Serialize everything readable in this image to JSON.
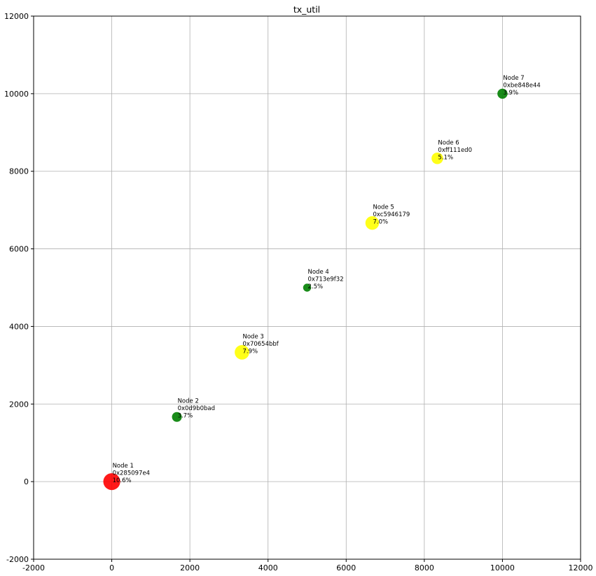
{
  "chart_data": {
    "type": "scatter",
    "title": "tx_util",
    "xlabel": "",
    "ylabel": "",
    "xlim": [
      -2000,
      12000
    ],
    "ylim": [
      -2000,
      12000
    ],
    "xticks": [
      -2000,
      0,
      2000,
      4000,
      6000,
      8000,
      10000,
      12000
    ],
    "yticks": [
      -2000,
      0,
      2000,
      4000,
      6000,
      8000,
      10000,
      12000
    ],
    "grid": true,
    "colors": {
      "red": "#ff0000",
      "green": "#008000",
      "yellow": "#ffff00"
    },
    "points": [
      {
        "x": 0,
        "y": 0,
        "color": "red",
        "label": "Node 1",
        "id": "0x285097e4",
        "util": "10.6%",
        "value": 10.6
      },
      {
        "x": 1667,
        "y": 1667,
        "color": "green",
        "label": "Node 2",
        "id": "0x0d9b0bad",
        "util": "3.7%",
        "value": 3.7
      },
      {
        "x": 3333,
        "y": 3333,
        "color": "yellow",
        "label": "Node 3",
        "id": "0x70654bbf",
        "util": "7.9%",
        "value": 7.9
      },
      {
        "x": 5000,
        "y": 5000,
        "color": "green",
        "label": "Node 4",
        "id": "0x713e9f32",
        "util": "2.5%",
        "value": 2.5
      },
      {
        "x": 6667,
        "y": 6667,
        "color": "yellow",
        "label": "Node 5",
        "id": "0xc5946179",
        "util": "7.0%",
        "value": 7.0
      },
      {
        "x": 8333,
        "y": 8333,
        "color": "yellow",
        "label": "Node 6",
        "id": "0xff111ed0",
        "util": "5.1%",
        "value": 5.1
      },
      {
        "x": 10000,
        "y": 10000,
        "color": "green",
        "label": "Node 7",
        "id": "0xbe848e44",
        "util": "3.9%",
        "value": 3.9
      }
    ]
  }
}
